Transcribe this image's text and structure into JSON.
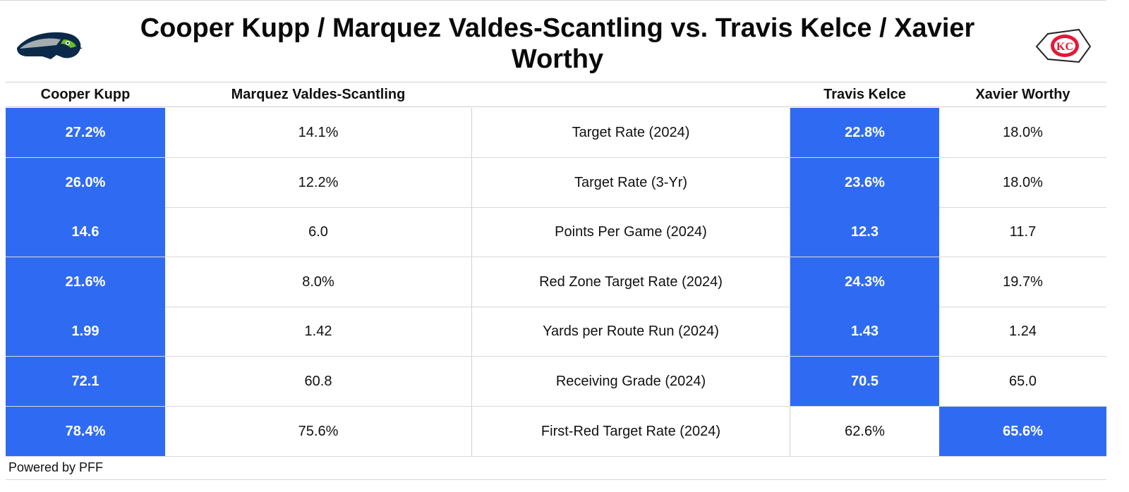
{
  "title": "Cooper Kupp / Marquez Valdes-Scantling vs. Travis Kelce / Xavier Worthy",
  "footer": "Powered by PFF",
  "colors": {
    "highlight": "#2f6bf2",
    "seahawks_navy": "#0b2a4a",
    "seahawks_green": "#69be28",
    "chiefs_red": "#e31837"
  },
  "logos": {
    "left": "seahawks-logo",
    "right": "chiefs-logo"
  },
  "columns": [
    "Cooper Kupp",
    "Marquez Valdes-Scantling",
    "",
    "Travis Kelce",
    "Xavier Worthy"
  ],
  "chart_data": {
    "type": "table",
    "title": "Cooper Kupp / Marquez Valdes-Scantling vs. Travis Kelce / Xavier Worthy",
    "columns": [
      "Cooper Kupp",
      "Marquez Valdes-Scantling",
      "",
      "Travis Kelce",
      "Xavier Worthy"
    ],
    "rows": [
      {
        "metric": "Target Rate (2024)",
        "kupp": "27.2%",
        "mvs": "14.1%",
        "kelce": "22.8%",
        "worthy": "18.0%",
        "highlight": [
          "kupp",
          "kelce"
        ]
      },
      {
        "metric": "Target Rate (3-Yr)",
        "kupp": "26.0%",
        "mvs": "12.2%",
        "kelce": "23.6%",
        "worthy": "18.0%",
        "highlight": [
          "kupp",
          "kelce"
        ]
      },
      {
        "metric": "Points Per Game (2024)",
        "kupp": "14.6",
        "mvs": "6.0",
        "kelce": "12.3",
        "worthy": "11.7",
        "highlight": [
          "kupp",
          "kelce"
        ]
      },
      {
        "metric": "Red Zone Target Rate (2024)",
        "kupp": "21.6%",
        "mvs": "8.0%",
        "kelce": "24.3%",
        "worthy": "19.7%",
        "highlight": [
          "kupp",
          "kelce"
        ]
      },
      {
        "metric": "Yards per Route Run (2024)",
        "kupp": "1.99",
        "mvs": "1.42",
        "kelce": "1.43",
        "worthy": "1.24",
        "highlight": [
          "kupp",
          "kelce"
        ]
      },
      {
        "metric": "Receiving Grade (2024)",
        "kupp": "72.1",
        "mvs": "60.8",
        "kelce": "70.5",
        "worthy": "65.0",
        "highlight": [
          "kupp",
          "kelce"
        ]
      },
      {
        "metric": "First-Red Target Rate (2024)",
        "kupp": "78.4%",
        "mvs": "75.6%",
        "kelce": "62.6%",
        "worthy": "65.6%",
        "highlight": [
          "kupp",
          "worthy"
        ]
      }
    ]
  }
}
